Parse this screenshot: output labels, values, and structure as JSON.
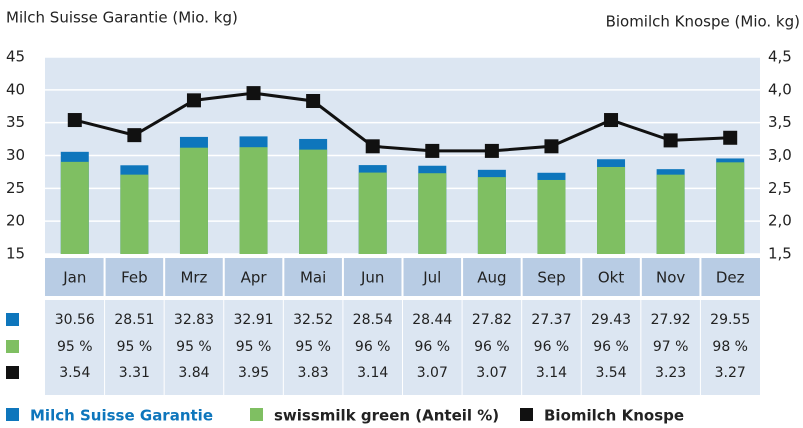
{
  "chart_data": {
    "type": "bar",
    "y_label": "Milch Suisse Garantie (Mio. kg)",
    "y2_label": "Biomilch Knospe (Mio. kg)",
    "categories": [
      "Jan",
      "Feb",
      "Mrz",
      "Apr",
      "Mai",
      "Jun",
      "Jul",
      "Aug",
      "Sep",
      "Okt",
      "Nov",
      "Dez"
    ],
    "series": [
      {
        "name": "Milch Suisse Garantie",
        "color": "#0e76bc",
        "values": [
          30.56,
          28.51,
          32.83,
          32.91,
          32.52,
          28.54,
          28.44,
          27.82,
          27.37,
          29.43,
          27.92,
          29.55
        ]
      },
      {
        "name": "swissmilk green (Anteil %)",
        "color": "#7fbf62",
        "values": [
          95,
          95,
          95,
          95,
          95,
          96,
          96,
          96,
          96,
          96,
          97,
          98
        ],
        "value_labels": [
          "95 %",
          "95 %",
          "95 %",
          "95 %",
          "95 %",
          "96 %",
          "96 %",
          "96 %",
          "96 %",
          "96 %",
          "97 %",
          "98 %"
        ]
      },
      {
        "name": "Biomilch Knospe",
        "color": "#111111",
        "axis": "y2",
        "values": [
          3.54,
          3.31,
          3.84,
          3.95,
          3.83,
          3.14,
          3.07,
          3.07,
          3.14,
          3.54,
          3.23,
          3.27
        ]
      }
    ],
    "ylim": [
      15,
      45
    ],
    "yticks": [
      15,
      20,
      25,
      30,
      35,
      40,
      45
    ],
    "y2lim": [
      1.5,
      4.5
    ],
    "y2ticks": [
      {
        "value": 1.5,
        "label": "1,5"
      },
      {
        "value": 2.0,
        "label": "2,0"
      },
      {
        "value": 2.5,
        "label": "2,5"
      },
      {
        "value": 3.0,
        "label": "3,0"
      },
      {
        "value": 3.5,
        "label": "3,5"
      },
      {
        "value": 4.0,
        "label": "4,0"
      },
      {
        "value": 4.5,
        "label": "4,5"
      }
    ],
    "grid": true
  }
}
